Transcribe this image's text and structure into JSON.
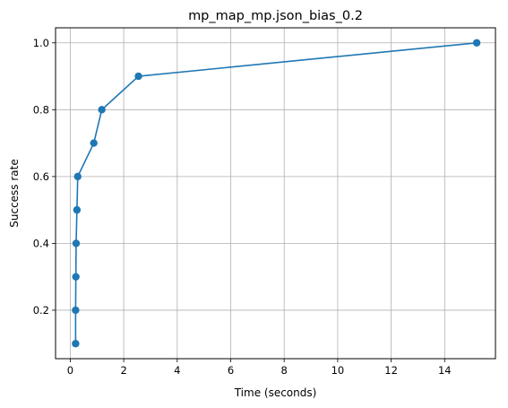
{
  "chart_data": {
    "type": "line",
    "title": "mp_map_mp.json_bias_0.2",
    "xlabel": "Time (seconds)",
    "ylabel": "Success rate",
    "xlim": [
      -0.55,
      15.9
    ],
    "ylim": [
      0.055,
      1.045
    ],
    "x_ticks": [
      0,
      2,
      4,
      6,
      8,
      10,
      12,
      14
    ],
    "x_tick_labels": [
      "0",
      "2",
      "4",
      "6",
      "8",
      "10",
      "12",
      "14"
    ],
    "y_ticks": [
      0.2,
      0.4,
      0.6,
      0.8,
      1.0
    ],
    "y_tick_labels": [
      "0.2",
      "0.4",
      "0.6",
      "0.8",
      "1.0"
    ],
    "grid": true,
    "line_color": "#1f77b4",
    "marker": "circle",
    "series": [
      {
        "x": [
          0.2,
          0.2,
          0.21,
          0.22,
          0.25,
          0.28,
          0.88,
          1.18,
          2.55,
          15.2
        ],
        "y": [
          0.1,
          0.2,
          0.3,
          0.4,
          0.5,
          0.6,
          0.7,
          0.8,
          0.9,
          1.0
        ]
      }
    ]
  }
}
